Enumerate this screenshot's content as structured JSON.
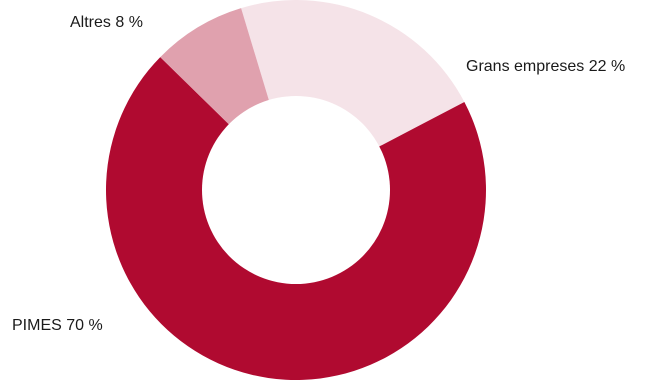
{
  "chart_data": {
    "type": "pie",
    "variant": "donut",
    "title": "",
    "slices": [
      {
        "label": "Grans empreses 22 %",
        "category": "Grans empreses",
        "value": 22,
        "color": "#f5e3e8"
      },
      {
        "label": "PIMES 70 %",
        "category": "PIMES",
        "value": 70,
        "color": "#b00a30"
      },
      {
        "label": "Altres 8 %",
        "category": "Altres",
        "value": 8,
        "color": "#e0a1ae"
      }
    ],
    "legend": "none"
  }
}
